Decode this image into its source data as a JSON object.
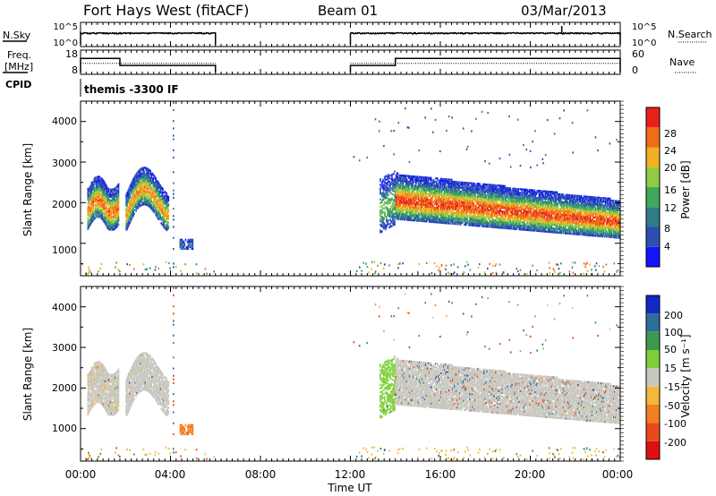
{
  "header": {
    "station": "Fort Hays West (fitACF)",
    "beam": "Beam 01",
    "date": "03/Mar/2013"
  },
  "strip_noise": {
    "left_label": "N.Sky",
    "right_label": "N.Search",
    "left_ticks": [
      "10^5",
      "10^0"
    ],
    "right_ticks": [
      "10^5",
      "10^0"
    ],
    "sky_level_exp": 3,
    "search_level_exp": 3.2,
    "segments": [
      [
        0.0,
        6.0
      ],
      [
        12.0,
        24.0
      ]
    ]
  },
  "strip_freq": {
    "left_label_1": "Freq.",
    "left_label_2": "[MHz]",
    "right_label": "Nave",
    "left_ticks": [
      "18",
      "8"
    ],
    "right_ticks": [
      "60",
      "0"
    ],
    "freq_steps": [
      [
        0.0,
        1.75,
        15.0
      ],
      [
        1.75,
        6.0,
        11.7
      ],
      [
        12.0,
        14.0,
        11.7
      ],
      [
        14.0,
        24.0,
        15.0
      ]
    ],
    "nave_level": 28
  },
  "cpid": {
    "label": "CPID",
    "text": "themis -3300 IF"
  },
  "x_axis": {
    "label": "Time UT",
    "range": [
      0,
      24
    ],
    "ticks": [
      {
        "v": 0,
        "l": "00:00"
      },
      {
        "v": 4,
        "l": "04:00"
      },
      {
        "v": 8,
        "l": "08:00"
      },
      {
        "v": 12,
        "l": "12:00"
      },
      {
        "v": 16,
        "l": "16:00"
      },
      {
        "v": 20,
        "l": "20:00"
      },
      {
        "v": 24,
        "l": "00:00"
      }
    ]
  },
  "power_panel": {
    "ylabel": "Slant Range [km]",
    "yticks": [
      "1000",
      "2000",
      "3000",
      "4000"
    ],
    "cbar_label": "Power [dB]",
    "cbar_ticks": [
      "4",
      "8",
      "12",
      "16",
      "20",
      "24",
      "28"
    ],
    "cbar_colors": [
      "#1414ff",
      "#2c4fb4",
      "#2e7d86",
      "#3fa85a",
      "#90cc42",
      "#f2b022",
      "#f06c18",
      "#e8201c"
    ]
  },
  "velocity_panel": {
    "ylabel": "Slant Range [km]",
    "yticks": [
      "1000",
      "2000",
      "3000",
      "4000"
    ],
    "cbar_label": "Velocity [m s⁻¹]",
    "cbar_ticks": [
      "200",
      "100",
      "50",
      "15",
      "-15",
      "-50",
      "-100",
      "-200"
    ],
    "cbar_colors": [
      "#1428c8",
      "#2d6e9a",
      "#3c9a50",
      "#7ecf3a",
      "#c8c8c0",
      "#f2b838",
      "#f28022",
      "#e84a1c",
      "#dc1010"
    ]
  },
  "chart_data": {
    "type": "heatmap",
    "x_range_hours": [
      0,
      24
    ],
    "y_range_km": [
      200,
      4500
    ],
    "power_colorbar_db": [
      4,
      8,
      12,
      16,
      20,
      24,
      28
    ],
    "velocity_colorbar_ms": [
      200,
      100,
      50,
      15,
      -15,
      -50,
      -100,
      -200
    ],
    "echo_regions": [
      {
        "t_start": 0.3,
        "t_end": 1.7,
        "range_low_km": 1450,
        "range_high_km": 2600,
        "peak_power_db": 26,
        "velocity_ms": 0
      },
      {
        "t_start": 2.0,
        "t_end": 3.9,
        "range_low_km": 1350,
        "range_high_km": 2800,
        "peak_power_db": 24,
        "velocity_ms": 0
      },
      {
        "t_start": 4.4,
        "t_end": 5.0,
        "range_low_km": 800,
        "range_high_km": 1150,
        "peak_power_db": 8,
        "velocity_ms": -80
      },
      {
        "t_start": 13.3,
        "t_end": 14.0,
        "range_low_km": 1100,
        "range_high_km": 2700,
        "peak_power_db": 16,
        "velocity_ms": 30
      },
      {
        "t_start": 14.0,
        "t_end": 24.0,
        "range_low_km": 1250,
        "range_high_km": 2900,
        "peak_power_db": 28,
        "velocity_ms": 0
      }
    ]
  }
}
